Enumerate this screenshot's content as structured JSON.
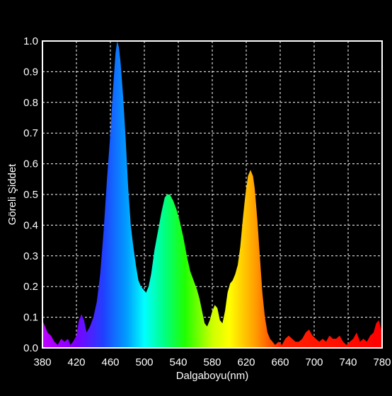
{
  "chart_data": {
    "type": "area",
    "title": "",
    "xlabel": "Dalgaboyu(nm)",
    "ylabel": "Göreli Şiddet",
    "xlim": [
      380,
      780
    ],
    "ylim": [
      0,
      1.0
    ],
    "grid": true,
    "x_ticks": [
      "380",
      "420",
      "460",
      "500",
      "540",
      "580",
      "620",
      "660",
      "700",
      "740",
      "780"
    ],
    "y_ticks": [
      "0.0",
      "0.1",
      "0.2",
      "0.3",
      "0.4",
      "0.5",
      "0.6",
      "0.7",
      "0.8",
      "0.9",
      "1.0"
    ],
    "series": [
      {
        "x": [
          380,
          383,
          386,
          390,
          394,
          398,
          402,
          406,
          410,
          413,
          416,
          420,
          423,
          426,
          429,
          432,
          436,
          440,
          444,
          448,
          452,
          456,
          460,
          463,
          466,
          468,
          470,
          472,
          475,
          478,
          481,
          484,
          487,
          490,
          493,
          496,
          499,
          502,
          505,
          508,
          512,
          516,
          520,
          524,
          527,
          530,
          534,
          538,
          542,
          546,
          550,
          554,
          558,
          562,
          565,
          568,
          571,
          574,
          577,
          580,
          583,
          586,
          589,
          592,
          595,
          598,
          601,
          604,
          607,
          610,
          613,
          616,
          619,
          622,
          625,
          628,
          630,
          633,
          636,
          639,
          642,
          645,
          648,
          651,
          654,
          658,
          662,
          666,
          670,
          674,
          678,
          682,
          686,
          690,
          694,
          698,
          702,
          706,
          710,
          714,
          718,
          722,
          726,
          730,
          734,
          738,
          742,
          746,
          750,
          754,
          758,
          762,
          766,
          770,
          773,
          776,
          780
        ],
        "y": [
          0.09,
          0.07,
          0.05,
          0.04,
          0.02,
          0.01,
          0.03,
          0.02,
          0.03,
          0.01,
          0.02,
          0.04,
          0.09,
          0.11,
          0.09,
          0.05,
          0.07,
          0.1,
          0.15,
          0.24,
          0.38,
          0.55,
          0.7,
          0.84,
          0.96,
          1.0,
          0.98,
          0.93,
          0.82,
          0.68,
          0.52,
          0.4,
          0.33,
          0.27,
          0.22,
          0.2,
          0.19,
          0.18,
          0.2,
          0.24,
          0.32,
          0.38,
          0.44,
          0.49,
          0.5,
          0.5,
          0.48,
          0.45,
          0.41,
          0.36,
          0.3,
          0.25,
          0.22,
          0.19,
          0.16,
          0.12,
          0.08,
          0.07,
          0.09,
          0.12,
          0.14,
          0.13,
          0.09,
          0.08,
          0.12,
          0.18,
          0.21,
          0.22,
          0.24,
          0.27,
          0.33,
          0.42,
          0.5,
          0.56,
          0.58,
          0.56,
          0.52,
          0.42,
          0.3,
          0.18,
          0.1,
          0.05,
          0.03,
          0.02,
          0.01,
          0.02,
          0.01,
          0.03,
          0.04,
          0.03,
          0.02,
          0.02,
          0.03,
          0.05,
          0.06,
          0.04,
          0.03,
          0.02,
          0.03,
          0.02,
          0.04,
          0.03,
          0.03,
          0.04,
          0.02,
          0.01,
          0.02,
          0.03,
          0.05,
          0.02,
          0.03,
          0.02,
          0.04,
          0.05,
          0.08,
          0.09,
          0.05
        ]
      }
    ]
  }
}
